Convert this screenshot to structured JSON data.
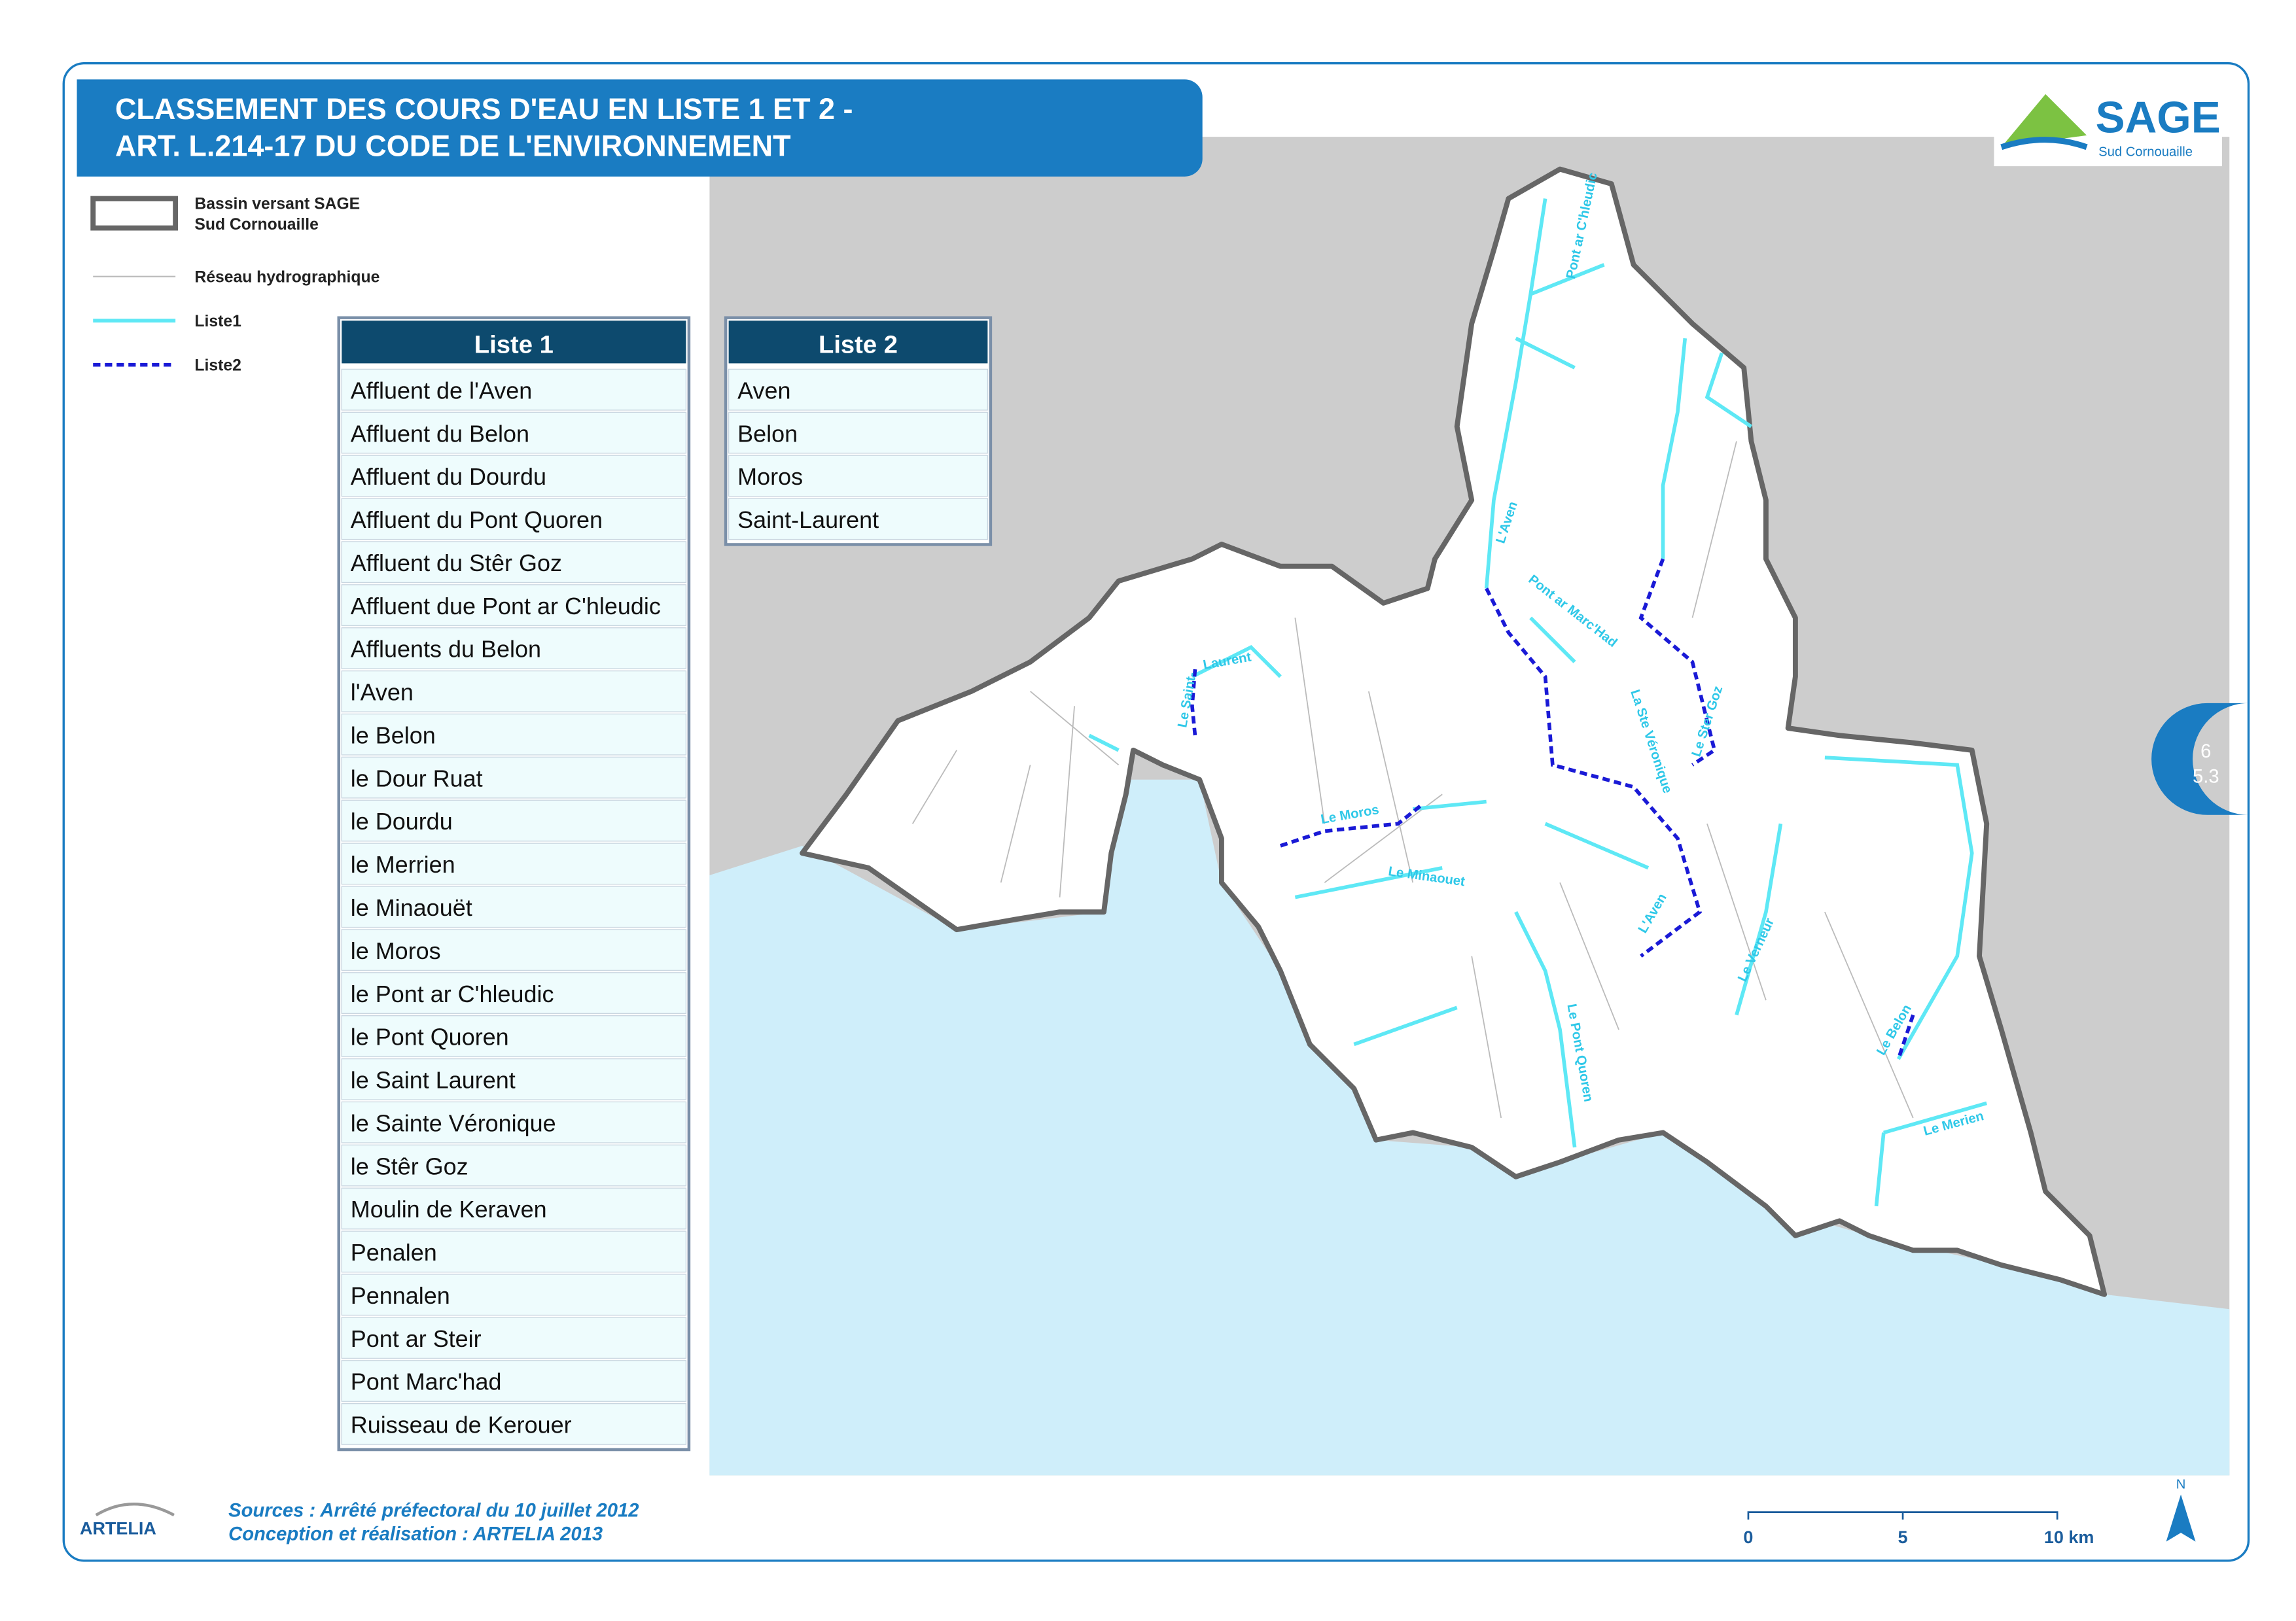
{
  "header": {
    "title_lines": [
      "CLASSEMENT DES COURS D'EAU EN LISTE 1 ET 2 -",
      "ART. L.214-17 DU CODE DE L'ENVIRONNEMENT"
    ]
  },
  "logo": {
    "name": "SAGE",
    "subtitle": "Sud Cornouaille"
  },
  "legend": {
    "basin_lines": [
      "Bassin versant SAGE",
      "Sud Cornouaille"
    ],
    "network": "Réseau hydrographique",
    "liste1": "Liste1",
    "liste2": "Liste2"
  },
  "liste1": {
    "title": "Liste 1",
    "rows": [
      "Affluent de l'Aven",
      "Affluent du Belon",
      "Affluent du Dourdu",
      "Affluent du Pont Quoren",
      "Affluent du Stêr Goz",
      "Affluent due Pont ar C'hleudic",
      "Affluents du Belon",
      "l'Aven",
      "le Belon",
      "le Dour Ruat",
      "le Dourdu",
      "le Merrien",
      "le Minaouët",
      "le Moros",
      "le Pont ar C'hleudic",
      "le Pont Quoren",
      "le Saint Laurent",
      "le Sainte Véronique",
      "le Stêr Goz",
      "Moulin de Keraven",
      "Penalen",
      "Pennalen",
      "Pont ar Steir",
      "Pont Marc'had",
      "Ruisseau de Kerouer"
    ]
  },
  "liste2": {
    "title": "Liste 2",
    "rows": [
      "Aven",
      "Belon",
      "Moros",
      "Saint-Laurent"
    ]
  },
  "river_labels": [
    "Pont ar C'hleudic",
    "L'Aven",
    "Pont ar Marc'Had",
    "La Ste Véronique",
    "Le Ster Goz",
    "Le Saint-",
    "Laurent",
    "Le Moros",
    "Le Minaouet",
    "L'Aven",
    "Le Verneur",
    "Le Pont Quoren",
    "Le Belon",
    "Le Merien"
  ],
  "page_ref": {
    "number": "6",
    "sub": "5.3"
  },
  "footer": {
    "sources": "Sources : Arrêté préfectoral du 10 juillet 2012",
    "credits": "Conception et réalisation : ARTELIA 2013",
    "company": "ARTELIA"
  },
  "scale": {
    "labels": [
      "0",
      "5",
      "10 km"
    ]
  },
  "north": "N"
}
